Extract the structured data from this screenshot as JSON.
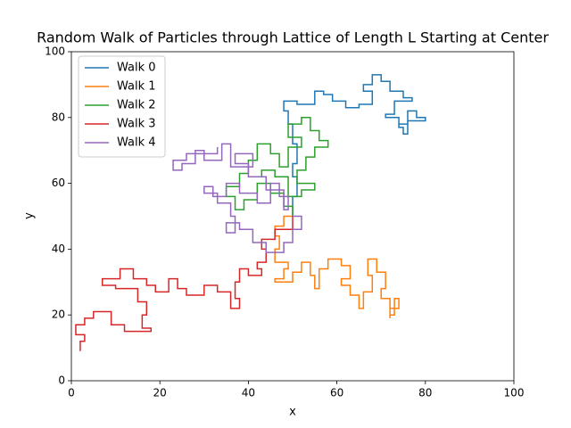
{
  "chart_data": {
    "type": "line",
    "title": "Random Walk of Particles through Lattice of Length L Starting at Center",
    "x_label": "x",
    "y_label": "y",
    "xlim": [
      0,
      100
    ],
    "ylim": [
      0,
      100
    ],
    "xticks": [
      0,
      20,
      40,
      60,
      80,
      100
    ],
    "yticks": [
      0,
      20,
      40,
      60,
      80,
      100
    ],
    "grid": false,
    "legend": "upper left",
    "series": [
      {
        "name": "Walk 0",
        "color": "#1f77b4",
        "x": [
          50,
          50,
          51,
          51,
          50,
          50,
          51,
          51,
          50,
          50,
          49,
          49,
          48,
          48,
          51,
          51,
          55,
          55,
          57,
          57,
          59,
          59,
          62,
          62,
          65,
          65,
          68,
          68,
          66,
          66,
          68,
          68,
          70,
          70,
          72,
          72,
          75,
          75,
          77,
          77,
          73,
          73,
          71,
          71,
          74,
          74,
          75,
          75,
          76,
          76,
          80,
          80,
          78,
          78,
          76,
          76,
          74
        ],
        "values": [
          50,
          56,
          56,
          62,
          62,
          66,
          66,
          72,
          72,
          78,
          78,
          82,
          82,
          85,
          85,
          84,
          84,
          88,
          88,
          87,
          87,
          85,
          85,
          83,
          83,
          84,
          84,
          88,
          88,
          90,
          90,
          93,
          93,
          91,
          91,
          88,
          88,
          86,
          86,
          85,
          85,
          81,
          81,
          80,
          80,
          77,
          77,
          75,
          75,
          79,
          79,
          80,
          80,
          82,
          82,
          78,
          78
        ]
      },
      {
        "name": "Walk 1",
        "color": "#ff7f0e",
        "x": [
          50,
          48,
          48,
          46,
          46,
          47,
          47,
          46,
          46,
          49,
          49,
          48,
          48,
          46,
          46,
          50,
          50,
          52,
          52,
          54,
          54,
          55,
          55,
          56,
          56,
          58,
          58,
          61,
          61,
          63,
          63,
          61,
          61,
          63,
          63,
          65,
          65,
          66,
          66,
          68,
          68,
          67,
          67,
          69,
          69,
          71,
          71,
          70,
          70,
          72,
          72,
          73,
          73,
          74,
          74,
          72,
          72
        ],
        "values": [
          50,
          50,
          47,
          47,
          44,
          44,
          40,
          40,
          36,
          36,
          34,
          34,
          31,
          31,
          30,
          30,
          33,
          33,
          36,
          36,
          32,
          32,
          28,
          28,
          34,
          34,
          37,
          37,
          35,
          35,
          31,
          31,
          29,
          29,
          26,
          26,
          22,
          22,
          27,
          27,
          32,
          32,
          37,
          37,
          33,
          33,
          28,
          28,
          25,
          25,
          20,
          20,
          25,
          25,
          22,
          22,
          19
        ]
      },
      {
        "name": "Walk 2",
        "color": "#2ca02c",
        "x": [
          50,
          50,
          48,
          48,
          45,
          45,
          42,
          42,
          39,
          39,
          37,
          37,
          35,
          35,
          38,
          38,
          40,
          40,
          42,
          42,
          45,
          45,
          47,
          47,
          49,
          49,
          52,
          52,
          49,
          49,
          52,
          52,
          54,
          54,
          56,
          56,
          58,
          58,
          55,
          55,
          53,
          53,
          51,
          51,
          55,
          55,
          52,
          52,
          49,
          49,
          46,
          46,
          43,
          43
        ],
        "values": [
          50,
          53,
          53,
          57,
          57,
          60,
          60,
          55,
          55,
          52,
          52,
          56,
          56,
          59,
          59,
          63,
          63,
          67,
          67,
          72,
          72,
          69,
          69,
          65,
          65,
          71,
          71,
          74,
          74,
          78,
          78,
          80,
          80,
          76,
          76,
          73,
          73,
          71,
          71,
          68,
          68,
          64,
          64,
          60,
          60,
          58,
          58,
          56,
          56,
          62,
          62,
          64,
          64,
          62
        ]
      },
      {
        "name": "Walk 3",
        "color": "#d62728",
        "x": [
          50,
          50,
          46,
          46,
          43,
          43,
          44,
          44,
          42,
          42,
          43,
          43,
          40,
          40,
          38,
          38,
          37,
          37,
          38,
          38,
          36,
          36,
          33,
          33,
          30,
          30,
          26,
          26,
          24,
          24,
          22,
          22,
          19,
          19,
          17,
          17,
          14,
          14,
          11,
          11,
          7,
          7,
          10,
          10,
          15,
          15,
          17,
          17,
          16,
          16,
          18,
          18,
          12,
          12,
          9,
          9,
          5,
          5,
          3,
          3,
          1,
          1,
          3,
          3,
          2,
          2
        ],
        "values": [
          50,
          46,
          46,
          43,
          43,
          40,
          40,
          36,
          36,
          34,
          34,
          32,
          32,
          34,
          34,
          30,
          30,
          25,
          25,
          22,
          22,
          27,
          27,
          29,
          29,
          26,
          26,
          28,
          28,
          31,
          31,
          27,
          27,
          29,
          29,
          31,
          31,
          34,
          34,
          31,
          31,
          29,
          29,
          28,
          28,
          24,
          24,
          20,
          20,
          16,
          16,
          15,
          15,
          17,
          17,
          21,
          21,
          19,
          19,
          17,
          17,
          14,
          14,
          12,
          12,
          9
        ]
      },
      {
        "name": "Walk 4",
        "color": "#9467bd",
        "x": [
          50,
          52,
          52,
          50,
          50,
          48,
          48,
          44,
          44,
          41,
          41,
          38,
          38,
          35,
          35,
          37,
          37,
          36,
          36,
          33,
          33,
          30,
          30,
          32,
          32,
          35,
          35,
          38,
          38,
          42,
          42,
          45,
          45,
          47,
          47,
          49,
          49,
          48,
          48,
          44,
          44,
          40,
          40,
          37,
          37,
          41,
          41,
          36,
          36,
          34,
          34,
          30,
          30,
          28,
          28,
          25,
          25,
          23,
          23,
          26,
          26,
          33,
          33
        ],
        "values": [
          50,
          50,
          46,
          46,
          42,
          42,
          39,
          39,
          42,
          42,
          46,
          46,
          48,
          48,
          45,
          45,
          50,
          50,
          54,
          54,
          57,
          57,
          59,
          59,
          56,
          56,
          60,
          60,
          57,
          57,
          54,
          54,
          60,
          60,
          56,
          56,
          52,
          52,
          58,
          58,
          62,
          62,
          66,
          66,
          69,
          69,
          65,
          65,
          72,
          72,
          67,
          67,
          70,
          70,
          66,
          66,
          64,
          64,
          67,
          67,
          69,
          69,
          71
        ]
      }
    ]
  }
}
